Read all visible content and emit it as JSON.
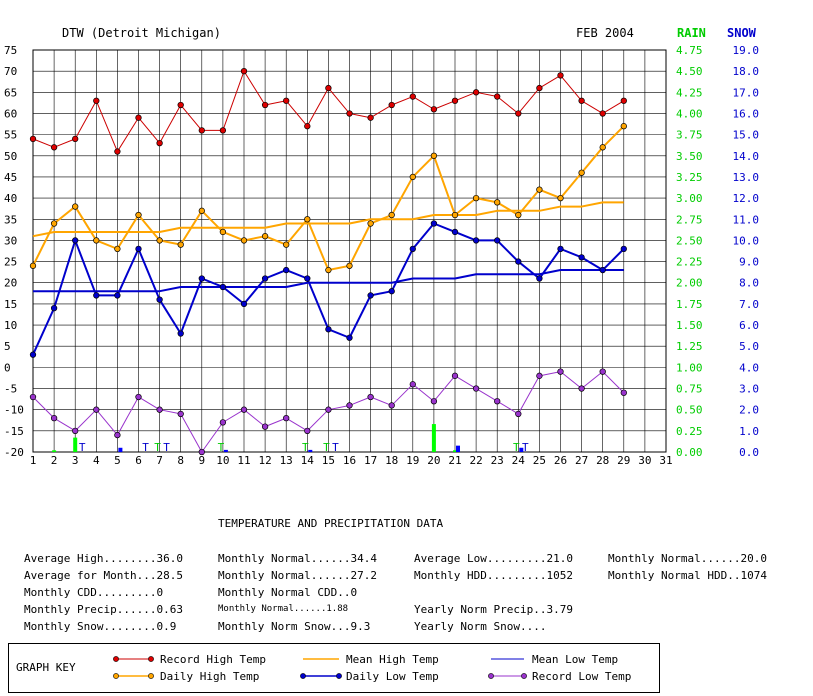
{
  "header": {
    "station": "DTW (Detroit Michigan)",
    "period": "FEB 2004",
    "rain_label": "RAIN",
    "snow_label": "SNOW"
  },
  "chart_data": {
    "type": "line",
    "x": [
      1,
      2,
      3,
      4,
      5,
      6,
      7,
      8,
      9,
      10,
      11,
      12,
      13,
      14,
      15,
      16,
      17,
      18,
      19,
      20,
      21,
      22,
      23,
      24,
      25,
      26,
      27,
      28,
      29
    ],
    "x_ticks": [
      "1",
      "2",
      "3",
      "4",
      "5",
      "6",
      "7",
      "8",
      "9",
      "10",
      "11",
      "12",
      "13",
      "14",
      "15",
      "16",
      "17",
      "18",
      "19",
      "20",
      "21",
      "22",
      "23",
      "24",
      "25",
      "26",
      "27",
      "28",
      "29",
      "30",
      "31"
    ],
    "xlim": [
      1,
      31
    ],
    "ylim": [
      -20,
      75
    ],
    "y_ticks": [
      "75",
      "70",
      "65",
      "60",
      "55",
      "50",
      "45",
      "40",
      "35",
      "30",
      "25",
      "20",
      "15",
      "10",
      "5",
      "0",
      "-5",
      "-10",
      "-15",
      "-20"
    ],
    "rain_ticks": [
      "4.75",
      "4.50",
      "4.25",
      "4.00",
      "3.75",
      "3.50",
      "3.25",
      "3.00",
      "2.75",
      "2.50",
      "2.25",
      "2.00",
      "1.75",
      "1.50",
      "1.25",
      "1.00",
      "0.75",
      "0.50",
      "0.25",
      "0.00"
    ],
    "snow_ticks": [
      "19.0",
      "18.0",
      "17.0",
      "16.0",
      "15.0",
      "14.0",
      "13.0",
      "12.0",
      "11.0",
      "10.0",
      "9.0",
      "8.0",
      "7.0",
      "6.0",
      "5.0",
      "4.0",
      "3.0",
      "2.0",
      "1.0",
      "0.0"
    ],
    "rain_lim": [
      0,
      4.75
    ],
    "snow_lim": [
      0,
      19
    ],
    "series": [
      {
        "name": "Record High Temp",
        "color": "#cc0000",
        "marker": "#dd0000",
        "width": 1,
        "values": [
          54,
          52,
          54,
          63,
          51,
          59,
          53,
          62,
          56,
          56,
          70,
          62,
          63,
          57,
          66,
          60,
          59,
          62,
          64,
          61,
          63,
          65,
          64,
          60,
          66,
          69,
          63,
          60,
          63
        ]
      },
      {
        "name": "Mean High Temp",
        "color": "#ffa500",
        "marker": null,
        "width": 2,
        "values": [
          31,
          32,
          32,
          32,
          32,
          32,
          32,
          33,
          33,
          33,
          33,
          33,
          34,
          34,
          34,
          34,
          35,
          35,
          35,
          36,
          36,
          36,
          37,
          37,
          37,
          38,
          38,
          39,
          39
        ]
      },
      {
        "name": "Mean Low Temp",
        "color": "#0000cc",
        "marker": null,
        "width": 2,
        "values": [
          18,
          18,
          18,
          18,
          18,
          18,
          18,
          19,
          19,
          19,
          19,
          19,
          19,
          20,
          20,
          20,
          20,
          20,
          21,
          21,
          21,
          22,
          22,
          22,
          22,
          23,
          23,
          23,
          23
        ]
      },
      {
        "name": "Daily High Temp",
        "color": "#ffa500",
        "marker": "#ffa500",
        "width": 2,
        "values": [
          24,
          34,
          38,
          30,
          28,
          36,
          30,
          29,
          37,
          32,
          30,
          31,
          29,
          35,
          23,
          24,
          34,
          36,
          45,
          50,
          36,
          40,
          39,
          36,
          42,
          40,
          46,
          52,
          57
        ]
      },
      {
        "name": "Daily Low Temp",
        "color": "#0000cc",
        "marker": "#0000cc",
        "width": 2,
        "values": [
          3,
          14,
          30,
          17,
          17,
          28,
          16,
          8,
          21,
          19,
          15,
          21,
          23,
          21,
          9,
          7,
          17,
          18,
          28,
          34,
          32,
          30,
          30,
          25,
          21,
          28,
          26,
          23,
          28
        ]
      },
      {
        "name": "Record Low Temp",
        "color": "#9933cc",
        "marker": "#9933cc",
        "width": 1,
        "values": [
          -7,
          -12,
          -15,
          -10,
          -16,
          -7,
          -10,
          -11,
          -20,
          -13,
          -10,
          -14,
          -12,
          -15,
          -10,
          -9,
          -7,
          -9,
          -4,
          -8,
          -2,
          -5,
          -8,
          -11,
          -2,
          -1,
          -5,
          -1,
          -6
        ]
      }
    ],
    "rain": [
      0,
      0.02,
      0.17,
      0,
      0,
      0,
      0,
      0,
      0,
      0,
      0,
      0,
      0,
      0,
      0,
      0,
      0,
      0,
      0,
      0.33,
      0.02,
      0,
      0,
      0,
      0,
      0,
      0,
      0,
      0
    ],
    "snow": [
      0,
      0,
      0,
      0,
      0.2,
      0,
      0,
      0,
      0,
      0.1,
      0,
      0,
      0,
      0.1,
      0,
      0,
      0,
      0,
      0,
      0,
      0.3,
      0,
      0,
      0.2,
      0,
      0,
      0,
      0,
      0
    ],
    "rain_trace_days": [
      7,
      10,
      14,
      15,
      24
    ],
    "snow_trace_days": [
      3,
      6,
      7,
      15,
      24
    ],
    "trace_label": "T"
  },
  "stats": {
    "title": "TEMPERATURE AND PRECIPITATION DATA",
    "col1": [
      "Average High........36.0",
      "Average for Month...28.5",
      "Monthly CDD.........0",
      "Monthly Precip......0.63",
      "Monthly Snow........0.9"
    ],
    "col2": [
      "Monthly Normal......34.4",
      "Monthly Normal......27.2",
      "Monthly Normal CDD..0",
      "Monthly Normal......1.88",
      "Monthly Norm Snow...9.3"
    ],
    "col3": [
      "Average Low.........21.0",
      "Monthly HDD.........1052",
      "",
      "Yearly Norm Precip..3.79",
      "Yearly Norm Snow...."
    ],
    "col4": [
      "Monthly Normal......20.0",
      "Monthly Normal HDD..1074"
    ]
  },
  "key": {
    "title": "GRAPH KEY",
    "items": [
      {
        "label": "Record High Temp",
        "color": "#cc0000",
        "marker": true
      },
      {
        "label": "Mean High Temp",
        "color": "#ffa500",
        "marker": false
      },
      {
        "label": "Mean Low Temp",
        "color": "#0000cc",
        "marker": false
      },
      {
        "label": "Daily High Temp",
        "color": "#ffa500",
        "marker": true
      },
      {
        "label": "Daily Low Temp",
        "color": "#0000cc",
        "marker": true
      },
      {
        "label": "Record Low Temp",
        "color": "#9933cc",
        "marker": true
      }
    ]
  },
  "colors": {
    "rain": "#00ff00",
    "snow": "#0000ff",
    "rain_text": "#00cc00",
    "snow_text": "#0000cc"
  }
}
